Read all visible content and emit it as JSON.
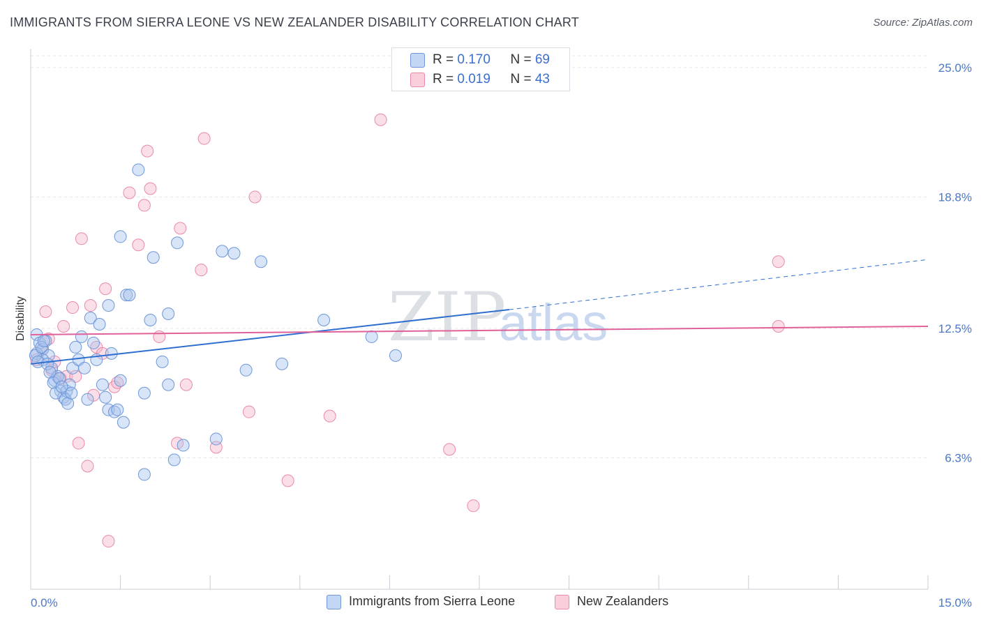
{
  "title": "IMMIGRANTS FROM SIERRA LEONE VS NEW ZEALANDER DISABILITY CORRELATION CHART",
  "source": "Source: ZipAtlas.com",
  "watermark": {
    "zip": "ZIP",
    "atlas": "atlas"
  },
  "colors": {
    "blue_fill": "#a9c4ee",
    "blue_stroke": "#6d97d8",
    "blue_line": "#2f6fd0",
    "pink_fill": "#f6b9cc",
    "pink_stroke": "#e88aa8",
    "pink_line": "#e0609a",
    "tick": "#4a78c8"
  },
  "legend": {
    "rows": [
      {
        "r_label": "R = ",
        "r_value": "0.170",
        "n_label": "N = ",
        "n_value": "69"
      },
      {
        "r_label": "R = ",
        "r_value": "0.019",
        "n_label": "N = ",
        "n_value": "43"
      }
    ]
  },
  "bottom_legend": [
    "Immigrants from Sierra Leone",
    "New Zealanders"
  ],
  "chart_data": {
    "type": "scatter",
    "title": "IMMIGRANTS FROM SIERRA LEONE VS NEW ZEALANDER DISABILITY CORRELATION CHART",
    "xlabel": "",
    "ylabel": "Disability",
    "xlim": [
      0,
      15
    ],
    "ylim": [
      0,
      25.9
    ],
    "x_tick_labels": [
      "0.0%",
      "15.0%"
    ],
    "y_ticks": [
      6.3,
      12.5,
      18.8,
      25.0
    ],
    "y_tick_labels": [
      "6.3%",
      "12.5%",
      "18.8%",
      "25.0%"
    ],
    "grid": true,
    "legend_position": "top-center",
    "series": [
      {
        "name": "Immigrants from Sierra Leone",
        "r": 0.17,
        "n": 69,
        "trend": {
          "x0": 0.0,
          "y0": 10.8,
          "x1": 8.0,
          "y1": 13.4,
          "dashed_to_x": 15.0,
          "dashed_to_y": 15.8
        },
        "points": [
          [
            0.1,
            12.2
          ],
          [
            0.15,
            11.8
          ],
          [
            0.2,
            11.5
          ],
          [
            0.1,
            11.3
          ],
          [
            0.25,
            11.9
          ],
          [
            0.3,
            11.2
          ],
          [
            0.2,
            11.0
          ],
          [
            0.35,
            10.6
          ],
          [
            0.4,
            10.0
          ],
          [
            0.45,
            10.2
          ],
          [
            0.5,
            9.5
          ],
          [
            0.55,
            9.2
          ],
          [
            0.6,
            9.5
          ],
          [
            0.65,
            9.8
          ],
          [
            0.7,
            10.6
          ],
          [
            0.75,
            11.6
          ],
          [
            0.8,
            11.0
          ],
          [
            0.85,
            12.1
          ],
          [
            0.9,
            10.6
          ],
          [
            0.95,
            9.1
          ],
          [
            1.0,
            13.0
          ],
          [
            1.05,
            11.8
          ],
          [
            1.1,
            11.0
          ],
          [
            1.15,
            12.7
          ],
          [
            1.2,
            9.8
          ],
          [
            1.25,
            9.2
          ],
          [
            1.3,
            8.6
          ],
          [
            1.35,
            11.3
          ],
          [
            1.4,
            8.5
          ],
          [
            1.45,
            8.6
          ],
          [
            1.5,
            10.0
          ],
          [
            1.55,
            8.0
          ],
          [
            1.6,
            14.1
          ],
          [
            1.65,
            14.1
          ],
          [
            1.5,
            16.9
          ],
          [
            1.8,
            20.1
          ],
          [
            1.9,
            9.4
          ],
          [
            1.9,
            5.5
          ],
          [
            2.0,
            12.9
          ],
          [
            2.05,
            15.9
          ],
          [
            2.2,
            10.9
          ],
          [
            2.3,
            13.2
          ],
          [
            2.3,
            9.8
          ],
          [
            2.45,
            16.6
          ],
          [
            2.4,
            6.2
          ],
          [
            2.55,
            6.9
          ],
          [
            3.1,
            7.2
          ],
          [
            3.2,
            16.2
          ],
          [
            3.4,
            16.1
          ],
          [
            3.6,
            10.5
          ],
          [
            3.85,
            15.7
          ],
          [
            4.2,
            10.8
          ],
          [
            4.9,
            12.9
          ],
          [
            5.7,
            12.1
          ],
          [
            6.1,
            11.2
          ],
          [
            0.08,
            11.2
          ],
          [
            0.12,
            10.9
          ],
          [
            0.18,
            11.6
          ],
          [
            0.22,
            11.9
          ],
          [
            0.28,
            10.8
          ],
          [
            0.32,
            10.4
          ],
          [
            0.38,
            9.9
          ],
          [
            0.42,
            9.4
          ],
          [
            0.48,
            10.1
          ],
          [
            0.52,
            9.7
          ],
          [
            0.58,
            9.1
          ],
          [
            0.62,
            8.9
          ],
          [
            0.68,
            9.4
          ],
          [
            1.3,
            13.6
          ]
        ]
      },
      {
        "name": "New Zealanders",
        "r": 0.019,
        "n": 43,
        "trend": {
          "x0": 0.0,
          "y0": 12.2,
          "x1": 15.0,
          "y1": 12.6
        },
        "points": [
          [
            0.1,
            11.0
          ],
          [
            0.2,
            11.5
          ],
          [
            0.25,
            13.3
          ],
          [
            0.3,
            12.0
          ],
          [
            0.35,
            10.5
          ],
          [
            0.4,
            10.9
          ],
          [
            0.5,
            10.1
          ],
          [
            0.55,
            12.6
          ],
          [
            0.6,
            10.2
          ],
          [
            0.7,
            13.5
          ],
          [
            0.75,
            10.2
          ],
          [
            0.8,
            7.0
          ],
          [
            0.85,
            16.8
          ],
          [
            0.95,
            5.9
          ],
          [
            1.0,
            13.6
          ],
          [
            1.05,
            9.3
          ],
          [
            1.1,
            11.6
          ],
          [
            1.2,
            11.3
          ],
          [
            1.25,
            14.4
          ],
          [
            1.3,
            2.3
          ],
          [
            1.4,
            9.7
          ],
          [
            1.45,
            9.9
          ],
          [
            1.65,
            19.0
          ],
          [
            1.8,
            16.5
          ],
          [
            1.9,
            18.4
          ],
          [
            1.95,
            21.0
          ],
          [
            2.0,
            19.2
          ],
          [
            2.15,
            12.1
          ],
          [
            2.45,
            7.0
          ],
          [
            2.5,
            17.3
          ],
          [
            2.6,
            9.8
          ],
          [
            2.85,
            15.3
          ],
          [
            2.9,
            21.6
          ],
          [
            3.1,
            6.8
          ],
          [
            3.65,
            8.5
          ],
          [
            3.75,
            18.8
          ],
          [
            4.3,
            5.2
          ],
          [
            5.0,
            8.3
          ],
          [
            5.85,
            22.5
          ],
          [
            7.0,
            6.7
          ],
          [
            7.4,
            4.0
          ],
          [
            12.5,
            15.7
          ],
          [
            12.5,
            12.6
          ]
        ]
      }
    ]
  }
}
